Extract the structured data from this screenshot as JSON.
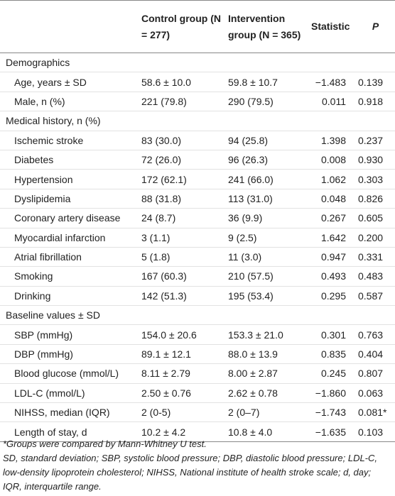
{
  "table": {
    "header": [
      "",
      "Control group (N = 277)",
      "Intervention group (N = 365)",
      "Statistic",
      "P"
    ],
    "sections": [
      {
        "title": "Demographics",
        "rows": [
          [
            "Age, years ± SD",
            "58.6 ± 10.0",
            "59.8 ± 10.7",
            "−1.483",
            "0.139"
          ],
          [
            "Male, n (%)",
            "221 (79.8)",
            "290 (79.5)",
            "0.011",
            "0.918"
          ]
        ]
      },
      {
        "title": "Medical history, n (%)",
        "rows": [
          [
            "Ischemic stroke",
            "83 (30.0)",
            "94 (25.8)",
            "1.398",
            "0.237"
          ],
          [
            "Diabetes",
            "72 (26.0)",
            "96 (26.3)",
            "0.008",
            "0.930"
          ],
          [
            "Hypertension",
            "172 (62.1)",
            "241 (66.0)",
            "1.062",
            "0.303"
          ],
          [
            "Dyslipidemia",
            "88 (31.8)",
            "113 (31.0)",
            "0.048",
            "0.826"
          ],
          [
            "Coronary artery disease",
            "24 (8.7)",
            "36 (9.9)",
            "0.267",
            "0.605"
          ],
          [
            "Myocardial infarction",
            "3 (1.1)",
            "9 (2.5)",
            "1.642",
            "0.200"
          ],
          [
            "Atrial fibrillation",
            "5 (1.8)",
            "11 (3.0)",
            "0.947",
            "0.331"
          ],
          [
            "Smoking",
            "167 (60.3)",
            "210 (57.5)",
            "0.493",
            "0.483"
          ],
          [
            "Drinking",
            "142 (51.3)",
            "195 (53.4)",
            "0.295",
            "0.587"
          ]
        ]
      },
      {
        "title": "Baseline values ± SD",
        "rows": [
          [
            "SBP (mmHg)",
            "154.0 ± 20.6",
            "153.3 ± 21.0",
            "0.301",
            "0.763"
          ],
          [
            "DBP (mmHg)",
            "89.1 ± 12.1",
            "88.0 ± 13.9",
            "0.835",
            "0.404"
          ],
          [
            "Blood glucose (mmol/L)",
            "8.11 ± 2.79",
            "8.00 ± 2.87",
            "0.245",
            "0.807"
          ],
          [
            "LDL-C (mmol/L)",
            "2.50 ± 0.76",
            "2.62 ± 0.78",
            "−1.860",
            "0.063"
          ],
          [
            "NIHSS, median (IQR)",
            "2 (0-5)",
            "2 (0–7)",
            "−1.743",
            "0.081*"
          ],
          [
            "Length of stay, d",
            "10.2 ± 4.2",
            "10.8 ± 4.0",
            "−1.635",
            "0.103"
          ]
        ]
      }
    ]
  },
  "footnotes": [
    "*Groups were compared by Mann-Whitney U test.",
    "SD, standard deviation; SBP, systolic blood pressure; DBP, diastolic blood pressure; LDL-C, low-density lipoprotein cholesterol; NIHSS, National institute of health stroke scale; d, day; IQR, interquartile range."
  ]
}
